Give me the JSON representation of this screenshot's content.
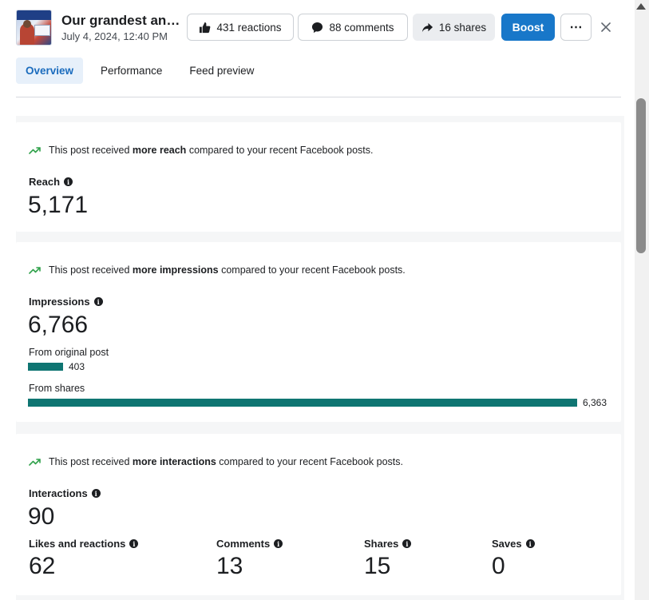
{
  "header": {
    "post_title": "Our grandest anniversary celebration",
    "post_date": "July 4, 2024, 12:40 PM",
    "reactions_label": "431 reactions",
    "comments_label": "88 comments",
    "shares_label": "16 shares",
    "boost_label": "Boost",
    "more_label": "⋯",
    "close_label": "✕"
  },
  "tabs": [
    {
      "label": "Overview",
      "active": true
    },
    {
      "label": "Performance",
      "active": false
    },
    {
      "label": "Feed preview",
      "active": false
    }
  ],
  "reach": {
    "insight_prefix": "This post received",
    "insight_bold": "more reach",
    "insight_suffix": "compared to your recent Facebook posts.",
    "label": "Reach",
    "value": "5,171"
  },
  "impressions": {
    "insight_prefix": "This post received",
    "insight_bold": "more impressions",
    "insight_suffix": "compared to your recent Facebook posts.",
    "label": "Impressions",
    "value": "6,766",
    "original_label": "From original post",
    "original_value": "403",
    "original_amount": 403,
    "shares_label": "From shares",
    "shares_value": "6,363",
    "shares_amount": 6363
  },
  "interactions": {
    "insight_prefix": "This post received",
    "insight_bold": "more interactions",
    "insight_suffix": "compared to your recent Facebook posts.",
    "label": "Interactions",
    "value": "90",
    "items": [
      {
        "label": "Likes and reactions",
        "value": "62"
      },
      {
        "label": "Comments",
        "value": "13"
      },
      {
        "label": "Shares",
        "value": "15"
      },
      {
        "label": "Saves",
        "value": "0"
      }
    ]
  },
  "colors": {
    "accent": "#1877c9",
    "bar": "#0f7572",
    "trend": "#31a24c",
    "active_tab_bg": "#e7f0fa",
    "active_tab_text": "#1a6bbd"
  },
  "icons": {
    "reactions": "thumbs-up-icon",
    "comments": "speech-bubble-icon",
    "shares": "share-arrow-icon",
    "trend": "trend-up-icon",
    "info": "info-icon",
    "close": "close-icon"
  }
}
